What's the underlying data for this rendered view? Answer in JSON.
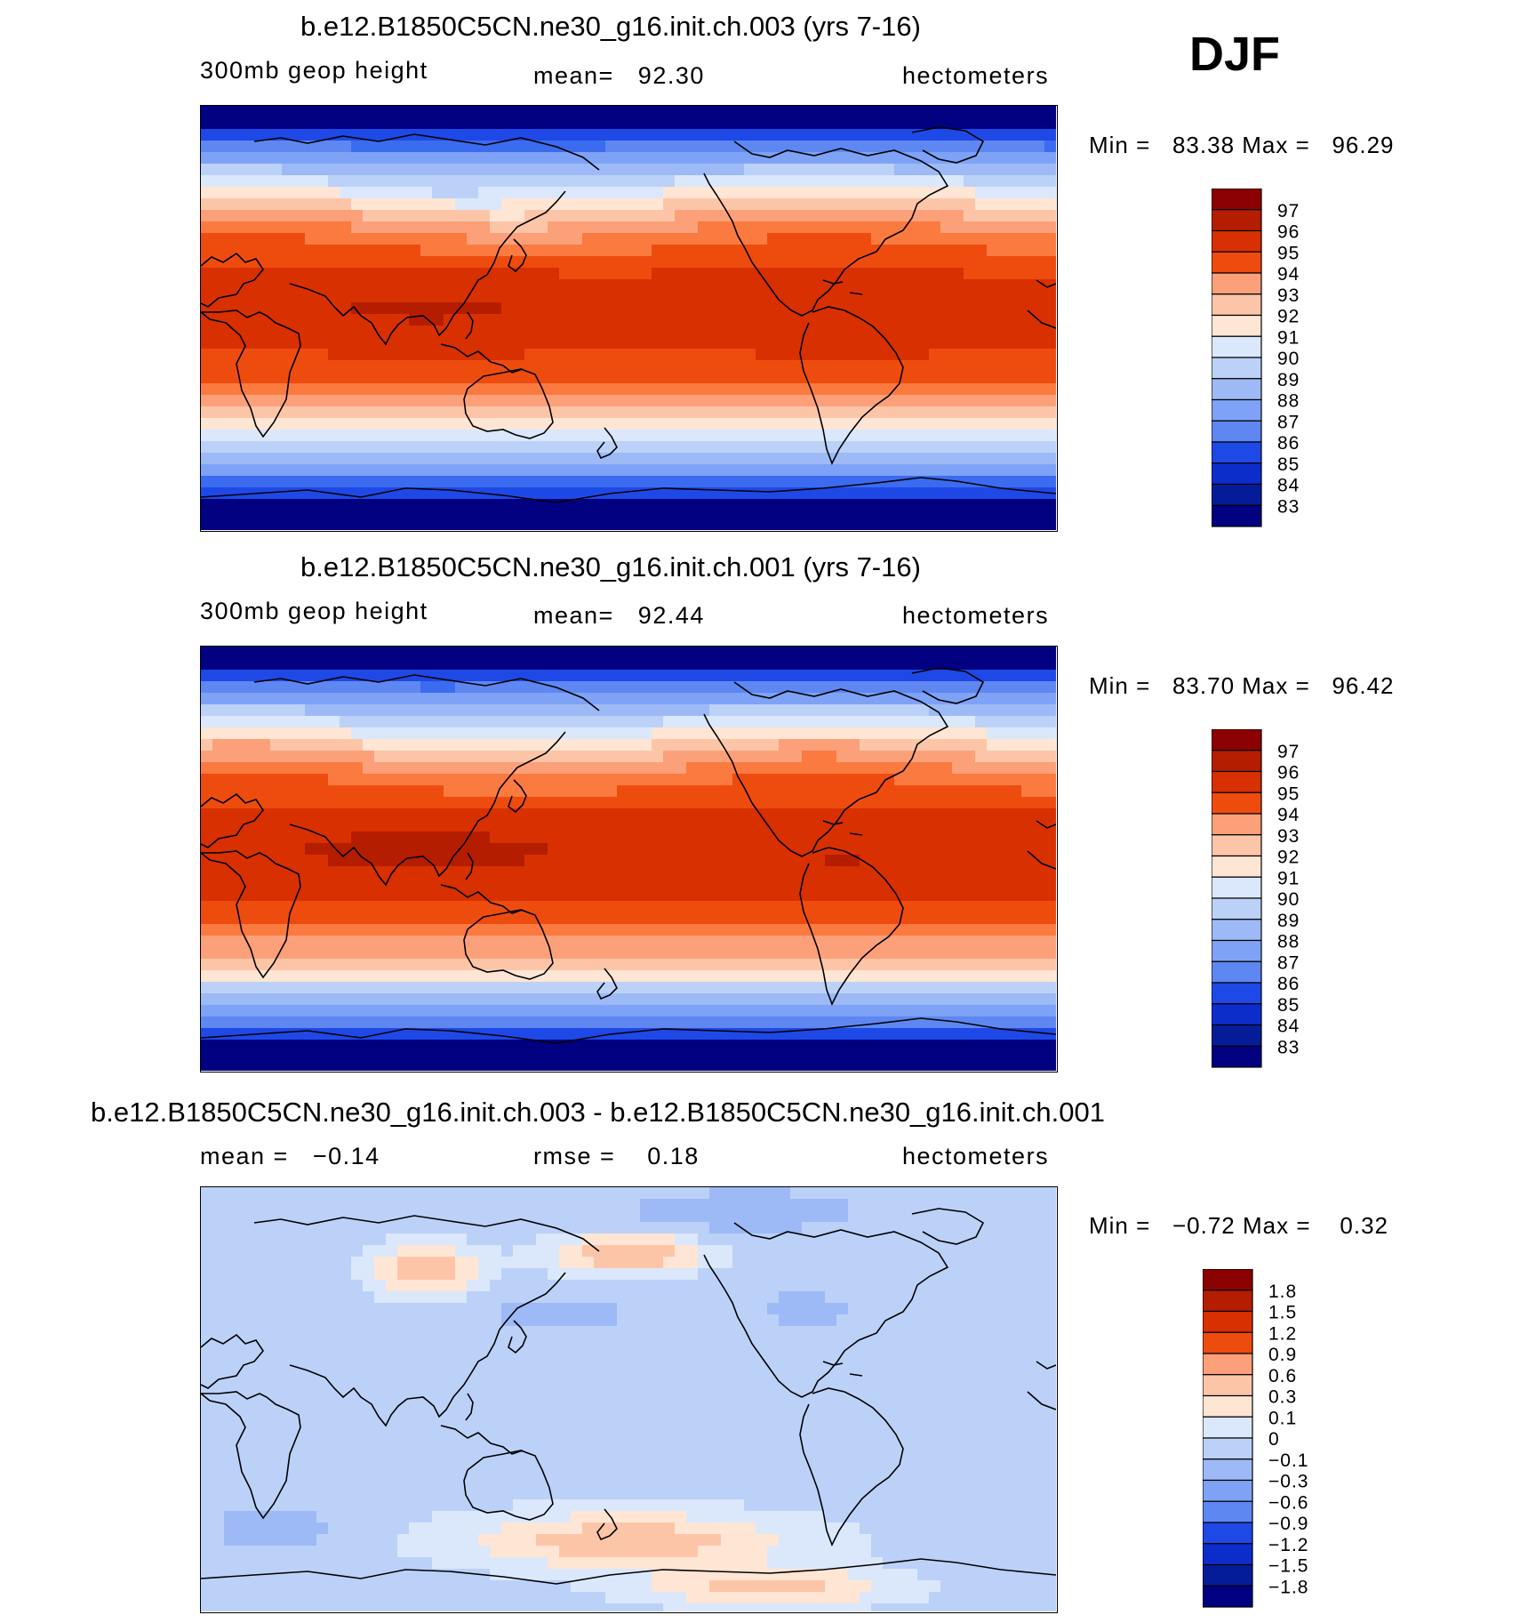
{
  "figure": {
    "season": "DJF",
    "colors": {
      "reds": [
        "#8b0000",
        "#b51d00",
        "#d83000",
        "#ee4c0e",
        "#fa7a40",
        "#fca07a",
        "#fdc5a8",
        "#fee5d4"
      ],
      "blues": [
        "#dbe8fb",
        "#bcd1f8",
        "#9dbaf6",
        "#7ea2f5",
        "#5e87f2",
        "#3b6bef",
        "#1e49e6",
        "#0c2dcc",
        "#051c99",
        "#000080"
      ]
    }
  },
  "chart_data": [
    {
      "type": "heatmap",
      "title": "b.e12.B1850C5CN.ne30_g16.init.ch.003 (yrs 7-16)",
      "left_label": "300mb geop height",
      "center_label": "mean=   92.30",
      "right_label": "hectometers",
      "stats": "Min =   83.38 Max =   96.29",
      "mean": 92.3,
      "min": 83.38,
      "max": 96.29,
      "colorbar": {
        "labels": [
          "97",
          "96",
          "95",
          "94",
          "93",
          "92",
          "91",
          "90",
          "89",
          "88",
          "87",
          "86",
          "85",
          "84",
          "83"
        ]
      },
      "field": "zonal-bands"
    },
    {
      "type": "heatmap",
      "title": "b.e12.B1850C5CN.ne30_g16.init.ch.001 (yrs 7-16)",
      "left_label": "300mb geop height",
      "center_label": "mean=   92.44",
      "right_label": "hectometers",
      "stats": "Min =   83.70 Max =   96.42",
      "mean": 92.44,
      "min": 83.7,
      "max": 96.42,
      "colorbar": {
        "labels": [
          "97",
          "96",
          "95",
          "94",
          "93",
          "92",
          "91",
          "90",
          "89",
          "88",
          "87",
          "86",
          "85",
          "84",
          "83"
        ]
      },
      "field": "zonal-bands"
    },
    {
      "type": "heatmap",
      "title": "b.e12.B1850C5CN.ne30_g16.init.ch.003 - b.e12.B1850C5CN.ne30_g16.init.ch.001",
      "left_label": "mean =   −0.14",
      "center_label": "rmse =    0.18",
      "right_label": "hectometers",
      "stats": "Min =   −0.72 Max =    0.32",
      "mean": -0.14,
      "rmse": 0.18,
      "min": -0.72,
      "max": 0.32,
      "colorbar": {
        "labels": [
          "1.8",
          "1.5",
          "1.2",
          "0.9",
          "0.6",
          "0.3",
          "0.1",
          "0",
          "−0.1",
          "−0.3",
          "−0.6",
          "−0.9",
          "−1.2",
          "−1.5",
          "−1.8"
        ]
      },
      "field": "difference"
    }
  ]
}
